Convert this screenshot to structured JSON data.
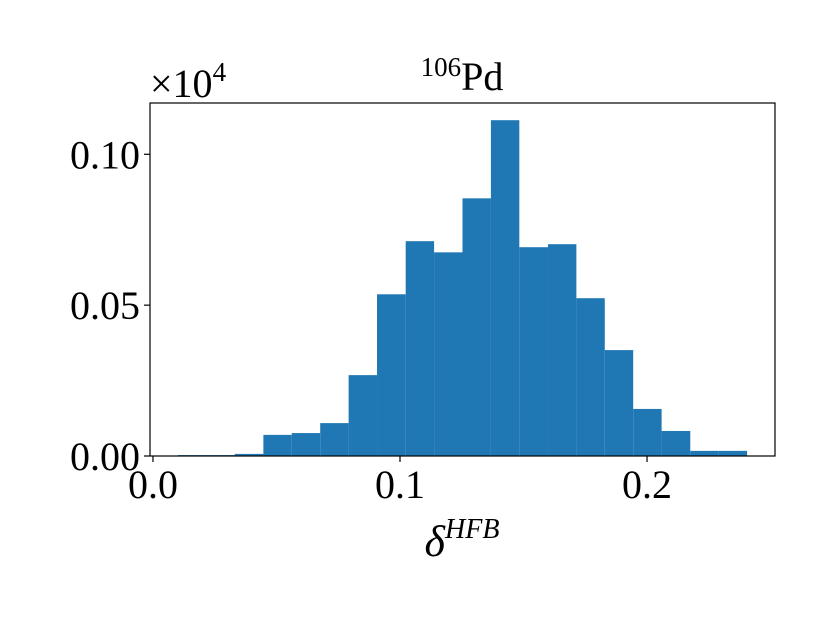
{
  "chart_data": {
    "type": "histogram",
    "title_superscript": "106",
    "title": "Pd",
    "y_offset": {
      "base": "×10",
      "exponent": "4"
    },
    "xlabel": {
      "base": "δ",
      "superscript": "HFB"
    },
    "color": "#1f77b4",
    "bins": [
      0.0101,
      0.0216,
      0.0331,
      0.0447,
      0.0562,
      0.0677,
      0.0792,
      0.0907,
      0.1023,
      0.1138,
      0.1253,
      0.1368,
      0.1483,
      0.1599,
      0.1714,
      0.1829,
      0.1944,
      0.2059,
      0.2175,
      0.229,
      0.2405
    ],
    "values": [
      0.0003,
      0.0003,
      0.0007,
      0.007,
      0.0076,
      0.0109,
      0.0268,
      0.0536,
      0.0712,
      0.0675,
      0.0854,
      0.1113,
      0.0692,
      0.0702,
      0.0523,
      0.0351,
      0.0156,
      0.0083,
      0.0017,
      0.0017
    ],
    "xlim": [
      -0.0012,
      0.2518
    ],
    "ylim": [
      0,
      0.117
    ],
    "xticks": [
      {
        "value": 0,
        "label": "0.0"
      },
      0.1,
      0.2
    ],
    "yticks": [
      {
        "value": 0,
        "label": "0.00"
      },
      {
        "value": 0.05,
        "label": "0.05"
      },
      {
        "value": 0.1,
        "label": "0.10"
      }
    ],
    "grid": false
  }
}
